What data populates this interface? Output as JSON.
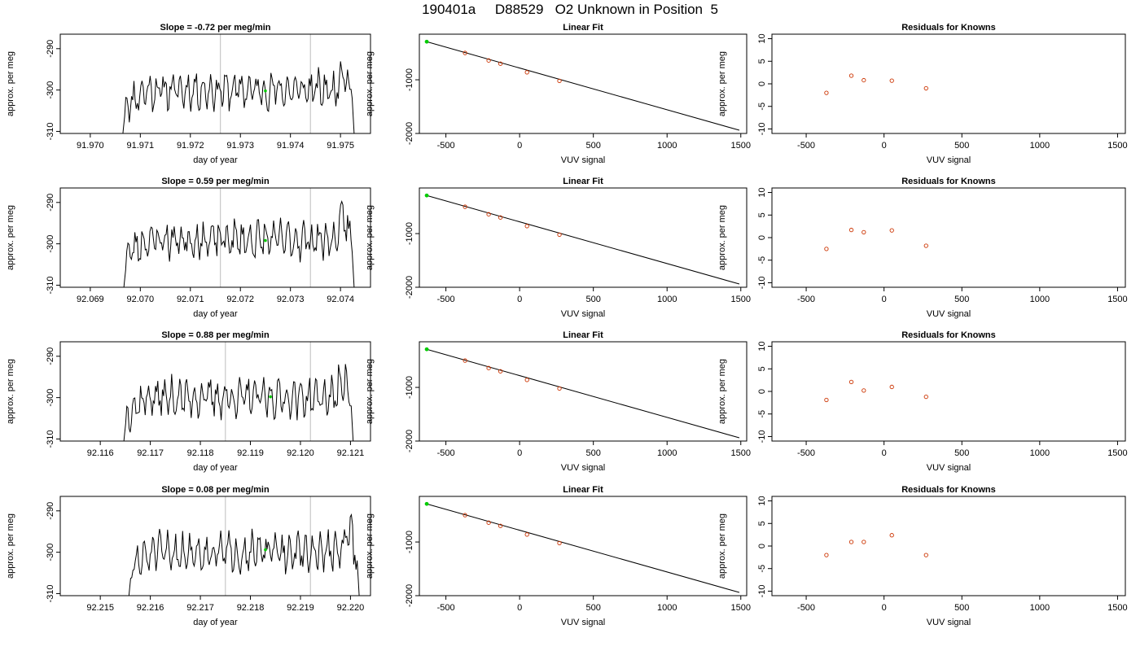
{
  "title": "190401a     D88529   O2 Unknown in Position  5",
  "colors": {
    "trace": "#000000",
    "vline": "#c8c8c8",
    "unknown": "#00cc00",
    "known": "#cc3300",
    "frame": "#000000"
  },
  "chart_data": [
    {
      "type": "line",
      "title": "Slope =  -0.72  per meg/min",
      "xlabel": "day of year",
      "ylabel": "approx. per meg",
      "xlim": [
        91.9694,
        91.9756
      ],
      "ylim": [
        -310.5,
        -286.5
      ],
      "xticks": [
        "91.970",
        "91.971",
        "91.972",
        "91.973",
        "91.974",
        "91.975"
      ],
      "yticks": [
        "-310",
        "-300",
        "-290"
      ],
      "vlines": [
        91.9726,
        91.9744
      ],
      "marker": [
        91.9735,
        -300.2
      ],
      "trace": {
        "start": 91.97064,
        "end": 91.97528,
        "baseline": -300,
        "seed": 11
      }
    },
    {
      "type": "scatter",
      "title": "Linear Fit",
      "xlabel": "VUV signal",
      "ylabel": "approx. per meg",
      "xlim": [
        -680,
        1540
      ],
      "ylim": [
        -2000,
        -150
      ],
      "xticks": [
        "-500",
        "0",
        "500",
        "1000",
        "1500"
      ],
      "yticks": [
        "-2000",
        "-1000"
      ],
      "line": [
        [
          -630,
          -290
        ],
        [
          1490,
          -1940
        ]
      ],
      "unknown": [
        [
          -630,
          -290
        ]
      ],
      "knowns": [
        [
          -370,
          -500
        ],
        [
          -210,
          -640
        ],
        [
          -130,
          -700
        ],
        [
          50,
          -860
        ],
        [
          270,
          -1020
        ]
      ]
    },
    {
      "type": "scatter",
      "title": "Residuals for Knowns",
      "xlabel": "VUV signal",
      "ylabel": "approx. per meg",
      "xlim": [
        -720,
        1550
      ],
      "ylim": [
        -11,
        11
      ],
      "xticks": [
        "-500",
        "0",
        "500",
        "1000",
        "1500"
      ],
      "yticks": [
        "-10",
        "-5",
        "0",
        "5",
        "10"
      ],
      "knowns": [
        [
          -370,
          -2.0
        ],
        [
          -210,
          1.8
        ],
        [
          -130,
          0.8
        ],
        [
          50,
          0.7
        ],
        [
          270,
          -1.0
        ]
      ]
    },
    {
      "type": "line",
      "title": "Slope =  0.59  per meg/min",
      "xlabel": "day of year",
      "ylabel": "approx. per meg",
      "xlim": [
        92.0684,
        92.0746
      ],
      "ylim": [
        -310.5,
        -286.5
      ],
      "xticks": [
        "92.069",
        "92.070",
        "92.071",
        "92.072",
        "92.073",
        "92.074"
      ],
      "yticks": [
        "-310",
        "-300",
        "-290"
      ],
      "vlines": [
        92.0716,
        92.0734
      ],
      "marker": [
        92.0725,
        -299.2
      ],
      "trace": {
        "start": 92.06966,
        "end": 92.07428,
        "baseline": -299,
        "seed": 23
      }
    },
    {
      "type": "scatter",
      "title": "Linear Fit",
      "xlabel": "VUV signal",
      "ylabel": "approx. per meg",
      "xlim": [
        -680,
        1540
      ],
      "ylim": [
        -2000,
        -150
      ],
      "xticks": [
        "-500",
        "0",
        "500",
        "1000",
        "1500"
      ],
      "yticks": [
        "-2000",
        "-1000"
      ],
      "line": [
        [
          -630,
          -290
        ],
        [
          1490,
          -1940
        ]
      ],
      "unknown": [
        [
          -630,
          -290
        ]
      ],
      "knowns": [
        [
          -370,
          -500
        ],
        [
          -210,
          -640
        ],
        [
          -130,
          -700
        ],
        [
          50,
          -860
        ],
        [
          270,
          -1020
        ]
      ]
    },
    {
      "type": "scatter",
      "title": "Residuals for Knowns",
      "xlabel": "VUV signal",
      "ylabel": "approx. per meg",
      "xlim": [
        -720,
        1550
      ],
      "ylim": [
        -11,
        11
      ],
      "xticks": [
        "-500",
        "0",
        "500",
        "1000",
        "1500"
      ],
      "yticks": [
        "-10",
        "-5",
        "0",
        "5",
        "10"
      ],
      "knowns": [
        [
          -370,
          -2.5
        ],
        [
          -210,
          1.7
        ],
        [
          -130,
          1.2
        ],
        [
          50,
          1.6
        ],
        [
          270,
          -1.8
        ]
      ]
    },
    {
      "type": "line",
      "title": "Slope =  0.88  per meg/min",
      "xlabel": "day of year",
      "ylabel": "approx. per meg",
      "xlim": [
        92.1152,
        92.1214
      ],
      "ylim": [
        -310.5,
        -286.5
      ],
      "xticks": [
        "92.116",
        "92.117",
        "92.118",
        "92.119",
        "92.120",
        "92.121"
      ],
      "yticks": [
        "-310",
        "-300",
        "-290"
      ],
      "vlines": [
        92.1185,
        92.1202
      ],
      "marker": [
        92.1194,
        -299.8
      ],
      "trace": {
        "start": 92.11646,
        "end": 92.12106,
        "baseline": -300,
        "seed": 37
      }
    },
    {
      "type": "scatter",
      "title": "Linear Fit",
      "xlabel": "VUV signal",
      "ylabel": "approx. per meg",
      "xlim": [
        -680,
        1540
      ],
      "ylim": [
        -2000,
        -150
      ],
      "xticks": [
        "-500",
        "0",
        "500",
        "1000",
        "1500"
      ],
      "yticks": [
        "-2000",
        "-1000"
      ],
      "line": [
        [
          -630,
          -290
        ],
        [
          1490,
          -1940
        ]
      ],
      "unknown": [
        [
          -630,
          -290
        ]
      ],
      "knowns": [
        [
          -370,
          -500
        ],
        [
          -210,
          -640
        ],
        [
          -130,
          -700
        ],
        [
          50,
          -860
        ],
        [
          270,
          -1020
        ]
      ]
    },
    {
      "type": "scatter",
      "title": "Residuals for Knowns",
      "xlabel": "VUV signal",
      "ylabel": "approx. per meg",
      "xlim": [
        -720,
        1550
      ],
      "ylim": [
        -11,
        11
      ],
      "xticks": [
        "-500",
        "0",
        "500",
        "1000",
        "1500"
      ],
      "yticks": [
        "-10",
        "-5",
        "0",
        "5",
        "10"
      ],
      "knowns": [
        [
          -370,
          -1.9
        ],
        [
          -210,
          2.1
        ],
        [
          -130,
          0.2
        ],
        [
          50,
          1.0
        ],
        [
          270,
          -1.2
        ]
      ]
    },
    {
      "type": "line",
      "title": "Slope =  0.08  per meg/min",
      "xlabel": "day of year",
      "ylabel": "approx. per meg",
      "xlim": [
        92.2142,
        92.2204
      ],
      "ylim": [
        -310.5,
        -286.5
      ],
      "xticks": [
        "92.215",
        "92.216",
        "92.217",
        "92.218",
        "92.219",
        "92.220"
      ],
      "yticks": [
        "-310",
        "-300",
        "-290"
      ],
      "vlines": [
        92.2175,
        92.2192
      ],
      "marker": [
        92.2183,
        -299.4
      ],
      "trace": {
        "start": 92.21556,
        "end": 92.22018,
        "baseline": -300,
        "seed": 51
      }
    },
    {
      "type": "scatter",
      "title": "Linear Fit",
      "xlabel": "VUV signal",
      "ylabel": "approx. per meg",
      "xlim": [
        -680,
        1540
      ],
      "ylim": [
        -2000,
        -150
      ],
      "xticks": [
        "-500",
        "0",
        "500",
        "1000",
        "1500"
      ],
      "yticks": [
        "-2000",
        "-1000"
      ],
      "line": [
        [
          -630,
          -290
        ],
        [
          1490,
          -1940
        ]
      ],
      "unknown": [
        [
          -630,
          -290
        ]
      ],
      "knowns": [
        [
          -370,
          -500
        ],
        [
          -210,
          -640
        ],
        [
          -130,
          -700
        ],
        [
          50,
          -860
        ],
        [
          270,
          -1020
        ]
      ]
    },
    {
      "type": "scatter",
      "title": "Residuals for Knowns",
      "xlabel": "VUV signal",
      "ylabel": "approx. per meg",
      "xlim": [
        -720,
        1550
      ],
      "ylim": [
        -11,
        11
      ],
      "xticks": [
        "-500",
        "0",
        "500",
        "1000",
        "1500"
      ],
      "yticks": [
        "-10",
        "-5",
        "0",
        "5",
        "10"
      ],
      "knowns": [
        [
          -370,
          -2.0
        ],
        [
          -210,
          0.9
        ],
        [
          -130,
          0.9
        ],
        [
          50,
          2.4
        ],
        [
          270,
          -2.0
        ]
      ]
    }
  ]
}
